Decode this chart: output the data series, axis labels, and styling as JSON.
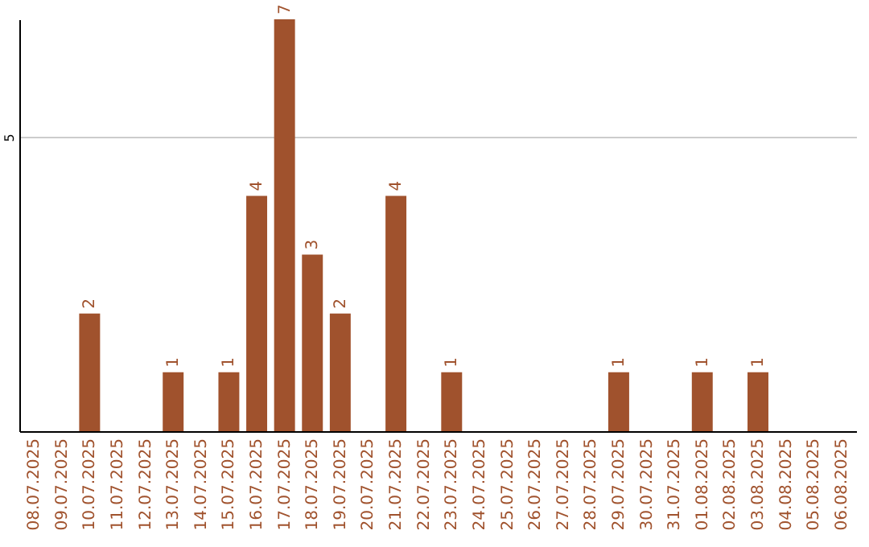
{
  "chart_data": {
    "type": "bar",
    "categories": [
      "08.07.2025",
      "09.07.2025",
      "10.07.2025",
      "11.07.2025",
      "12.07.2025",
      "13.07.2025",
      "14.07.2025",
      "15.07.2025",
      "16.07.2025",
      "17.07.2025",
      "18.07.2025",
      "19.07.2025",
      "20.07.2025",
      "21.07.2025",
      "22.07.2025",
      "23.07.2025",
      "24.07.2025",
      "25.07.2025",
      "26.07.2025",
      "27.07.2025",
      "28.07.2025",
      "29.07.2025",
      "30.07.2025",
      "31.07.2025",
      "01.08.2025",
      "02.08.2025",
      "03.08.2025",
      "04.08.2025",
      "05.08.2025",
      "06.08.2025"
    ],
    "values": [
      null,
      null,
      2,
      null,
      null,
      1,
      null,
      1,
      4,
      7,
      3,
      2,
      null,
      4,
      null,
      1,
      null,
      null,
      null,
      null,
      null,
      1,
      null,
      null,
      1,
      null,
      1,
      null,
      null,
      null
    ],
    "color": "#a0522d",
    "ylim": [
      0,
      7
    ],
    "yticks": [
      5
    ],
    "grid": "y",
    "data_labels": true
  }
}
